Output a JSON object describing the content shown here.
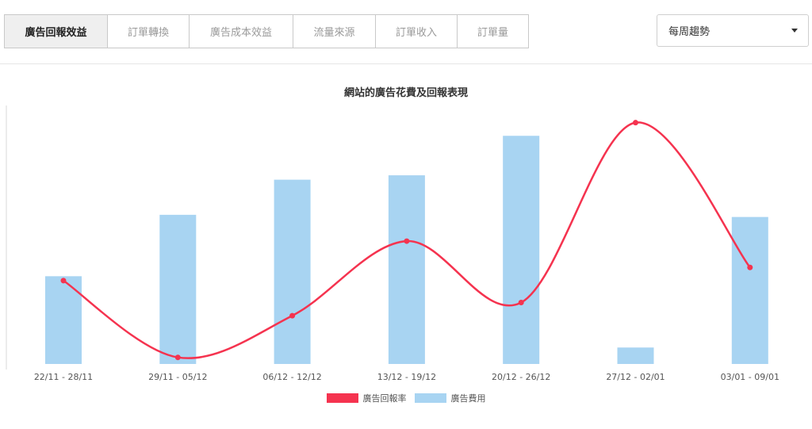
{
  "tabs": [
    {
      "label": "廣告回報效益",
      "active": true
    },
    {
      "label": "訂單轉換",
      "active": false
    },
    {
      "label": "廣告成本效益",
      "active": false
    },
    {
      "label": "流量來源",
      "active": false
    },
    {
      "label": "訂單收入",
      "active": false
    },
    {
      "label": "訂單量",
      "active": false
    }
  ],
  "period_select": {
    "value": "每周趨勢"
  },
  "chart_data": {
    "type": "bar",
    "title": "網站的廣告花費及回報表現",
    "categories": [
      "22/11 - 28/11",
      "29/11 - 05/12",
      "06/12 - 12/12",
      "13/12 - 19/12",
      "20/12 - 26/12",
      "27/12 - 02/01",
      "03/01 - 09/01"
    ],
    "series": [
      {
        "name": "廣告回報率",
        "type": "line",
        "color": "#f5334f",
        "values": [
          3.8,
          0.3,
          2.2,
          5.6,
          2.8,
          11.0,
          4.4
        ]
      },
      {
        "name": "廣告費用",
        "type": "bar",
        "color": "#a8d4f2",
        "values": [
          40,
          68,
          84,
          86,
          104,
          7.5,
          67
        ]
      }
    ],
    "ylim_line": [
      0,
      12
    ],
    "ylim_bar": [
      0,
      120
    ],
    "grid": false,
    "legend": "bottom"
  },
  "legend": {
    "return_rate": "廣告回報率",
    "ad_cost": "廣告費用"
  }
}
